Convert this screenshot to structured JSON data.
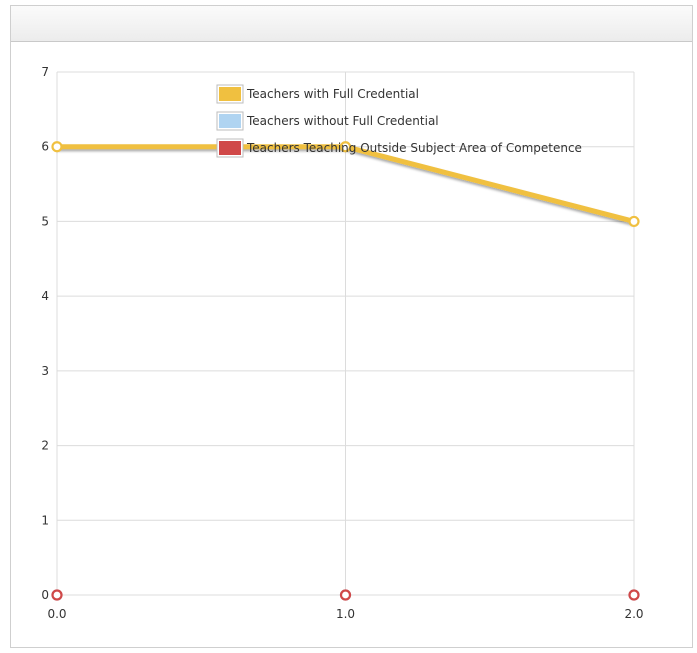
{
  "chart_data": {
    "type": "line",
    "title": "",
    "xlabel": "",
    "ylabel": "",
    "x": [
      0.0,
      1.0,
      2.0
    ],
    "x_tick_labels": [
      "0.0",
      "1.0",
      "2.0"
    ],
    "y_tick_labels": [
      "0",
      "1",
      "2",
      "3",
      "4",
      "5",
      "6",
      "7"
    ],
    "xlim": [
      0,
      2
    ],
    "ylim": [
      0,
      7
    ],
    "grid": true,
    "legend_position": "top-center",
    "series": [
      {
        "name": "Teachers with Full Credential",
        "color": "#f0c040",
        "values": [
          6,
          6,
          5
        ]
      },
      {
        "name": "Teachers without Full Credential",
        "color": "#b0d4f1",
        "values": [
          0,
          0,
          0
        ]
      },
      {
        "name": "Teachers Teaching Outside Subject Area of Competence",
        "color": "#d04848",
        "values": [
          0,
          0,
          0
        ]
      }
    ]
  }
}
